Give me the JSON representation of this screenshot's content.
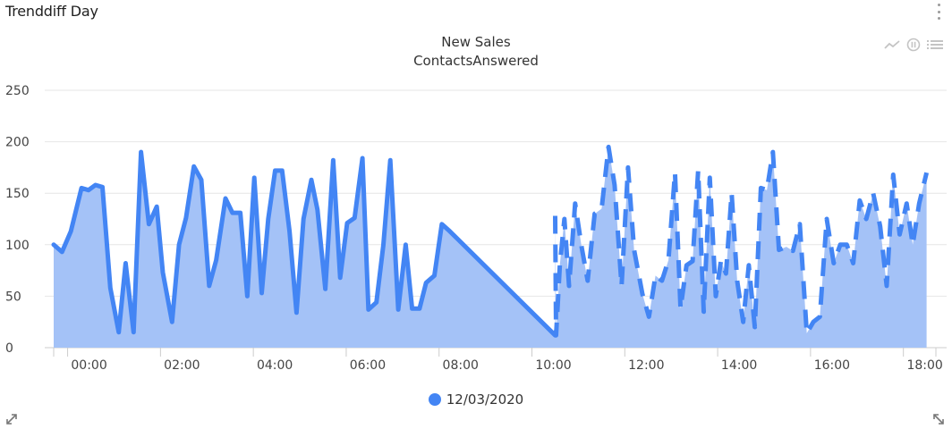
{
  "widget": {
    "title": "Trenddiff Day"
  },
  "icons": {
    "menu": "vertical-dots-icon",
    "line_toggle": "line-chart-icon",
    "pause": "pause-icon",
    "list": "list-icon",
    "expand_left": "expand-diagonal-icon",
    "expand_right": "resize-diagonal-icon"
  },
  "colors": {
    "series": "#4385f4",
    "area": "#a4c2f7",
    "grid": "#e6e6e6",
    "axis": "#cccccc"
  },
  "chart_data": {
    "type": "area",
    "title": "New Sales",
    "subtitle": "ContactsAnswered",
    "x_unit": "hour",
    "x_ticks": [
      "00:00",
      "02:00",
      "04:00",
      "06:00",
      "08:00",
      "10:00",
      "12:00",
      "14:00",
      "16:00",
      "18:00"
    ],
    "x_tick_values": [
      0,
      2,
      4,
      6,
      8,
      10,
      12,
      14,
      16,
      18
    ],
    "xlim": [
      -0.3,
      18.7
    ],
    "ylim": [
      0,
      250
    ],
    "y_ticks": [
      0,
      50,
      100,
      150,
      200,
      250
    ],
    "grid": true,
    "legend": {
      "position": "bottom-center",
      "entries": [
        "12/03/2020"
      ]
    },
    "series": [
      {
        "name": "12/03/2020",
        "style": "solid",
        "x": [
          -0.3,
          -0.12,
          0.07,
          0.3,
          0.45,
          0.6,
          0.75,
          0.92,
          1.1,
          1.25,
          1.42,
          1.58,
          1.75,
          1.92,
          2.05,
          2.25,
          2.4,
          2.55,
          2.72,
          2.88,
          3.05,
          3.2,
          3.4,
          3.55,
          3.72,
          3.87,
          4.02,
          4.18,
          4.32,
          4.47,
          4.62,
          4.78,
          4.93,
          5.08,
          5.25,
          5.38,
          5.55,
          5.72,
          5.87,
          6.02,
          6.18,
          6.35,
          6.48,
          6.65,
          6.8,
          6.95,
          7.12,
          7.28,
          7.42,
          7.58,
          7.72,
          7.9,
          8.06,
          8.21,
          10.5
        ],
        "y": [
          100,
          93,
          113,
          155,
          153,
          158,
          156,
          58,
          15,
          82,
          15,
          190,
          120,
          137,
          73,
          25,
          100,
          126,
          176,
          163,
          60,
          85,
          145,
          131,
          131,
          50,
          165,
          53,
          125,
          172,
          172,
          113,
          34,
          125,
          163,
          134,
          57,
          182,
          68,
          121,
          126,
          184,
          37,
          44,
          100,
          182,
          37,
          100,
          38,
          38,
          63,
          70,
          120,
          114,
          12
        ]
      },
      {
        "name": "12/03/2020 (dashed)",
        "style": "dashed",
        "x": [
          10.5,
          10.52,
          10.6,
          10.7,
          10.8,
          10.93,
          11.07,
          11.2,
          11.35,
          11.5,
          11.65,
          11.78,
          11.93,
          12.07,
          12.2,
          12.38,
          12.52,
          12.66,
          12.8,
          12.94,
          13.08,
          13.2,
          13.33,
          13.46,
          13.58,
          13.7,
          13.83,
          13.96,
          14.07,
          14.18,
          14.3,
          14.42,
          14.55,
          14.67,
          14.8,
          14.93,
          15.06,
          15.19,
          15.32,
          15.48,
          15.62,
          15.77,
          15.92,
          16.06,
          16.2,
          16.35,
          16.5,
          16.64,
          16.78,
          16.92,
          17.06,
          17.2,
          17.35,
          17.5,
          17.64,
          17.78,
          17.92,
          18.07,
          18.2,
          18.34,
          18.5
        ],
        "y": [
          128,
          12,
          80,
          125,
          60,
          140,
          98,
          65,
          130,
          135,
          195,
          158,
          60,
          175,
          95,
          52,
          30,
          70,
          65,
          85,
          170,
          38,
          80,
          84,
          172,
          35,
          165,
          50,
          84,
          72,
          150,
          65,
          25,
          80,
          20,
          155,
          153,
          190,
          95,
          98,
          94,
          120,
          14,
          25,
          30,
          125,
          82,
          100,
          100,
          82,
          143,
          125,
          150,
          118,
          60,
          168,
          110,
          140,
          100,
          140,
          170
        ]
      }
    ]
  }
}
